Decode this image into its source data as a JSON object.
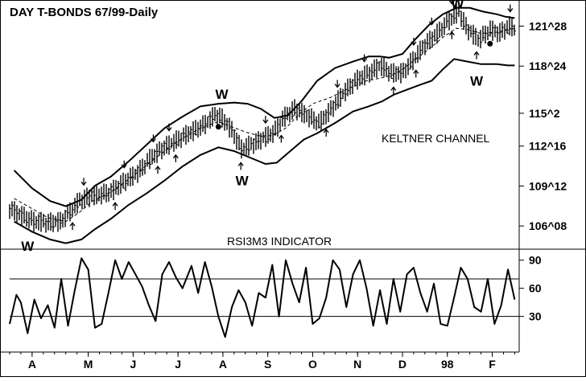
{
  "chart_data": [
    {
      "type": "ohlc",
      "title": "DAY T-BONDS 67/99-Daily",
      "annotation": "KELTNER CHANNEL",
      "y_tick_labels": [
        "121^28",
        "118^24",
        "115^2",
        "112^16",
        "109^12",
        "106^08"
      ],
      "y_ticks": [
        121.875,
        118.75,
        115.0625,
        112.5,
        109.375,
        106.25
      ],
      "ylim": [
        104.5,
        123.6
      ],
      "x_month_labels": [
        "A",
        "M",
        "J",
        "J",
        "A",
        "S",
        "O",
        "N",
        "D",
        "98",
        "F"
      ],
      "x_month_positions": [
        0.5,
        3.0,
        5.0,
        7.0,
        9.0,
        11.0,
        13.0,
        15.0,
        17.0,
        19.0,
        21.0
      ],
      "xlim": [
        -0.5,
        22.2
      ],
      "signal_label": "W",
      "signals": [
        {
          "x": 0.3,
          "y": 105.2,
          "pos": "below"
        },
        {
          "x": 8.95,
          "y": 116.2,
          "pos": "above"
        },
        {
          "x": 9.85,
          "y": 110.3,
          "pos": "below"
        },
        {
          "x": 19.45,
          "y": 123.3,
          "pos": "above"
        },
        {
          "x": 20.3,
          "y": 118.1,
          "pos": "below"
        }
      ],
      "price_path": [
        [
          -0.5,
          107.6
        ],
        [
          0.0,
          107.1
        ],
        [
          0.6,
          106.6
        ],
        [
          1.2,
          106.5
        ],
        [
          1.8,
          106.6
        ],
        [
          2.2,
          107.4
        ],
        [
          2.6,
          108.2
        ],
        [
          3.0,
          108.5
        ],
        [
          3.5,
          108.7
        ],
        [
          4.0,
          108.9
        ],
        [
          4.6,
          109.7
        ],
        [
          5.2,
          110.4
        ],
        [
          5.8,
          111.6
        ],
        [
          6.4,
          112.4
        ],
        [
          7.0,
          113.0
        ],
        [
          7.6,
          113.6
        ],
        [
          8.2,
          114.2
        ],
        [
          8.7,
          115.0
        ],
        [
          9.0,
          114.6
        ],
        [
          9.4,
          113.7
        ],
        [
          9.8,
          112.3
        ],
        [
          10.3,
          112.6
        ],
        [
          10.8,
          113.1
        ],
        [
          11.3,
          113.6
        ],
        [
          11.7,
          114.7
        ],
        [
          12.2,
          115.4
        ],
        [
          12.8,
          114.8
        ],
        [
          13.3,
          114.3
        ],
        [
          13.8,
          115.3
        ],
        [
          14.4,
          116.7
        ],
        [
          15.0,
          117.7
        ],
        [
          15.6,
          118.3
        ],
        [
          16.0,
          118.8
        ],
        [
          16.5,
          118.2
        ],
        [
          17.0,
          118.2
        ],
        [
          17.5,
          119.3
        ],
        [
          18.0,
          120.4
        ],
        [
          18.5,
          121.2
        ],
        [
          19.0,
          122.2
        ],
        [
          19.5,
          123.0
        ],
        [
          19.9,
          121.6
        ],
        [
          20.4,
          120.8
        ],
        [
          20.9,
          121.6
        ],
        [
          21.3,
          121.3
        ],
        [
          21.8,
          121.9
        ],
        [
          22.0,
          121.6
        ]
      ],
      "keltner_upper": [
        [
          -0.3,
          110.6
        ],
        [
          0.5,
          109.2
        ],
        [
          1.3,
          108.2
        ],
        [
          2.0,
          107.8
        ],
        [
          2.7,
          108.3
        ],
        [
          3.3,
          109.4
        ],
        [
          4.0,
          110.1
        ],
        [
          4.8,
          111.3
        ],
        [
          5.6,
          112.6
        ],
        [
          6.4,
          113.9
        ],
        [
          7.2,
          114.8
        ],
        [
          8.0,
          115.6
        ],
        [
          8.8,
          115.8
        ],
        [
          9.5,
          115.9
        ],
        [
          10.1,
          115.8
        ],
        [
          10.7,
          115.4
        ],
        [
          11.3,
          114.7
        ],
        [
          11.9,
          114.9
        ],
        [
          12.5,
          116.0
        ],
        [
          13.2,
          117.6
        ],
        [
          14.0,
          118.6
        ],
        [
          14.8,
          119.1
        ],
        [
          15.5,
          119.5
        ],
        [
          16.0,
          119.5
        ],
        [
          16.4,
          119.4
        ],
        [
          17.0,
          119.7
        ],
        [
          17.6,
          120.9
        ],
        [
          18.2,
          122.0
        ],
        [
          18.8,
          122.8
        ],
        [
          19.4,
          123.3
        ],
        [
          20.0,
          123.3
        ],
        [
          20.6,
          123.0
        ],
        [
          21.2,
          122.8
        ],
        [
          21.6,
          122.6
        ],
        [
          22.0,
          122.5
        ]
      ],
      "keltner_middle": [
        [
          -0.3,
          108.4
        ],
        [
          0.5,
          107.6
        ],
        [
          1.2,
          106.9
        ],
        [
          2.0,
          106.6
        ],
        [
          2.6,
          107.3
        ],
        [
          3.2,
          108.2
        ],
        [
          4.0,
          108.9
        ],
        [
          4.8,
          109.9
        ],
        [
          5.6,
          111.0
        ],
        [
          6.4,
          112.1
        ],
        [
          7.2,
          113.1
        ],
        [
          8.0,
          113.9
        ],
        [
          8.8,
          114.4
        ],
        [
          9.4,
          114.0
        ],
        [
          10.0,
          113.6
        ],
        [
          10.6,
          113.3
        ],
        [
          11.2,
          113.3
        ],
        [
          11.8,
          113.9
        ],
        [
          12.4,
          115.0
        ],
        [
          13.0,
          115.8
        ],
        [
          13.8,
          116.3
        ],
        [
          14.6,
          117.0
        ],
        [
          15.4,
          117.6
        ],
        [
          16.0,
          117.8
        ],
        [
          16.5,
          118.0
        ],
        [
          17.0,
          118.5
        ],
        [
          17.6,
          119.3
        ],
        [
          18.2,
          120.1
        ],
        [
          18.8,
          121.0
        ],
        [
          19.4,
          121.7
        ],
        [
          19.9,
          121.6
        ],
        [
          20.5,
          121.3
        ],
        [
          21.2,
          121.4
        ],
        [
          21.8,
          121.6
        ],
        [
          22.0,
          121.7
        ]
      ],
      "keltner_lower": [
        [
          -0.3,
          106.6
        ],
        [
          0.5,
          105.8
        ],
        [
          1.3,
          105.2
        ],
        [
          2.0,
          104.9
        ],
        [
          2.7,
          105.2
        ],
        [
          3.3,
          106.0
        ],
        [
          4.0,
          106.8
        ],
        [
          4.8,
          107.9
        ],
        [
          5.6,
          108.8
        ],
        [
          6.4,
          109.8
        ],
        [
          7.2,
          110.9
        ],
        [
          8.0,
          111.8
        ],
        [
          8.8,
          112.4
        ],
        [
          9.5,
          112.1
        ],
        [
          10.2,
          111.6
        ],
        [
          10.9,
          111.1
        ],
        [
          11.4,
          111.2
        ],
        [
          12.0,
          112.1
        ],
        [
          12.6,
          113.0
        ],
        [
          13.2,
          113.5
        ],
        [
          14.0,
          114.3
        ],
        [
          14.8,
          115.2
        ],
        [
          15.5,
          115.6
        ],
        [
          16.1,
          116.0
        ],
        [
          16.6,
          116.5
        ],
        [
          17.2,
          116.9
        ],
        [
          17.8,
          117.3
        ],
        [
          18.3,
          117.6
        ],
        [
          18.8,
          118.5
        ],
        [
          19.3,
          119.3
        ],
        [
          19.9,
          119.1
        ],
        [
          20.5,
          118.9
        ],
        [
          21.2,
          118.9
        ],
        [
          21.7,
          118.8
        ],
        [
          22.0,
          118.8
        ]
      ],
      "up_arrows_x": [
        2.3,
        4.2,
        6.1,
        6.9,
        9.8,
        11.6,
        13.6,
        16.6,
        17.6,
        19.2,
        20.3
      ],
      "down_arrows_x": [
        2.8,
        4.6,
        5.9,
        6.6,
        10.9,
        14.1,
        15.3,
        17.5,
        18.3,
        19.2,
        21.8
      ],
      "dots": [
        [
          8.8,
          114.0
        ],
        [
          20.9,
          120.5
        ]
      ]
    },
    {
      "type": "line",
      "title": "RSI3M3 INDICATOR",
      "y_tick_labels": [
        "90",
        "60",
        "30"
      ],
      "y_ticks": [
        90,
        60,
        30
      ],
      "ylim": [
        -8,
        100
      ],
      "reference_lines": [
        70,
        30
      ],
      "values": [
        [
          -0.5,
          22
        ],
        [
          -0.2,
          53
        ],
        [
          0.0,
          45
        ],
        [
          0.3,
          12
        ],
        [
          0.6,
          48
        ],
        [
          0.9,
          28
        ],
        [
          1.2,
          42
        ],
        [
          1.5,
          18
        ],
        [
          1.8,
          70
        ],
        [
          2.1,
          20
        ],
        [
          2.4,
          58
        ],
        [
          2.7,
          92
        ],
        [
          3.0,
          80
        ],
        [
          3.3,
          18
        ],
        [
          3.6,
          22
        ],
        [
          3.9,
          55
        ],
        [
          4.2,
          90
        ],
        [
          4.5,
          70
        ],
        [
          4.8,
          88
        ],
        [
          5.1,
          75
        ],
        [
          5.4,
          62
        ],
        [
          5.7,
          42
        ],
        [
          6.0,
          25
        ],
        [
          6.3,
          75
        ],
        [
          6.6,
          88
        ],
        [
          6.9,
          72
        ],
        [
          7.2,
          60
        ],
        [
          7.6,
          84
        ],
        [
          7.9,
          55
        ],
        [
          8.2,
          88
        ],
        [
          8.5,
          62
        ],
        [
          8.8,
          30
        ],
        [
          9.1,
          8
        ],
        [
          9.4,
          40
        ],
        [
          9.7,
          58
        ],
        [
          10.0,
          45
        ],
        [
          10.3,
          20
        ],
        [
          10.6,
          55
        ],
        [
          10.9,
          50
        ],
        [
          11.2,
          85
        ],
        [
          11.5,
          30
        ],
        [
          11.8,
          90
        ],
        [
          12.1,
          65
        ],
        [
          12.4,
          45
        ],
        [
          12.7,
          82
        ],
        [
          13.0,
          22
        ],
        [
          13.3,
          28
        ],
        [
          13.6,
          50
        ],
        [
          13.9,
          90
        ],
        [
          14.2,
          80
        ],
        [
          14.5,
          40
        ],
        [
          14.8,
          75
        ],
        [
          15.1,
          90
        ],
        [
          15.4,
          60
        ],
        [
          15.7,
          20
        ],
        [
          16.0,
          58
        ],
        [
          16.3,
          22
        ],
        [
          16.6,
          70
        ],
        [
          16.9,
          35
        ],
        [
          17.2,
          75
        ],
        [
          17.5,
          82
        ],
        [
          17.8,
          55
        ],
        [
          18.1,
          35
        ],
        [
          18.4,
          65
        ],
        [
          18.7,
          22
        ],
        [
          19.0,
          20
        ],
        [
          19.3,
          50
        ],
        [
          19.6,
          82
        ],
        [
          19.9,
          70
        ],
        [
          20.2,
          40
        ],
        [
          20.5,
          35
        ],
        [
          20.8,
          70
        ],
        [
          21.1,
          22
        ],
        [
          21.4,
          42
        ],
        [
          21.7,
          80
        ],
        [
          22.0,
          48
        ]
      ]
    }
  ]
}
